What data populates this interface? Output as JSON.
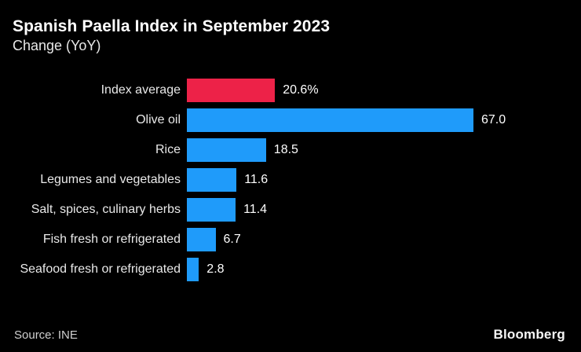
{
  "colors": {
    "background": "#000000",
    "accent_red": "#ed2248",
    "accent_blue": "#1f9bfa",
    "title_text": "#ffffff",
    "label_text": "#e9e9e9",
    "source_text": "#cfcfcf"
  },
  "chart_data": {
    "type": "bar",
    "orientation": "horizontal",
    "title": "Spanish Paella Index in September 2023",
    "subtitle": "Change (YoY)",
    "categories": [
      "Index average",
      "Olive oil",
      "Rice",
      "Legumes and vegetables",
      "Salt, spices, culinary herbs",
      "Fish fresh or refrigerated",
      "Seafood fresh or refrigerated"
    ],
    "values": [
      20.6,
      67.0,
      18.5,
      11.6,
      11.4,
      6.7,
      2.8
    ],
    "value_labels": [
      "20.6%",
      "67.0",
      "18.5",
      "11.6",
      "11.4",
      "6.7",
      "2.8"
    ],
    "bar_colors": [
      "#ed2248",
      "#1f9bfa",
      "#1f9bfa",
      "#1f9bfa",
      "#1f9bfa",
      "#1f9bfa",
      "#1f9bfa"
    ],
    "xlim": [
      0,
      67
    ],
    "grid": false,
    "legend": false,
    "axis_visible": false
  },
  "footer": {
    "source": "Source: INE",
    "brand": "Bloomberg"
  }
}
